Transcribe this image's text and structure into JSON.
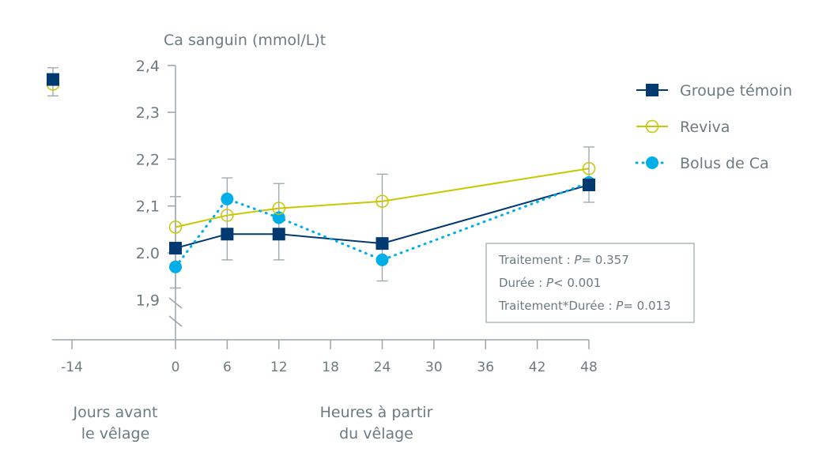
{
  "chart_data": {
    "type": "line",
    "ylabel": "Ca sanguin (mmol/L)t",
    "ylim": [
      1.85,
      2.4
    ],
    "y_ticks": [
      "2,4",
      "2,3",
      "2,2",
      "2,1",
      "2.0",
      "1,9"
    ],
    "y_tick_values": [
      2.4,
      2.3,
      2.2,
      2.1,
      2.0,
      1.9
    ],
    "y_axis_break": true,
    "x_ticks": [
      -14,
      0,
      6,
      12,
      18,
      24,
      30,
      36,
      42,
      48
    ],
    "x_label_left": "Jours avant le vêlage",
    "x_label_left_lines": [
      "Jours avant",
      "le vêlage"
    ],
    "x_label_main_lines": [
      "Heures à partir",
      "du vêlage"
    ],
    "grid": false,
    "legend_position": "right",
    "series": [
      {
        "name": "Groupe témoin",
        "color": "#003a70",
        "marker": "square",
        "line": "solid",
        "x": [
          -14,
          0,
          6,
          12,
          24,
          48
        ],
        "values": [
          2.37,
          2.01,
          2.04,
          2.04,
          2.02,
          2.145
        ]
      },
      {
        "name": "Reviva",
        "color": "#c8c800",
        "marker": "open-circle",
        "line": "solid",
        "x": [
          -14,
          0,
          6,
          12,
          24,
          48
        ],
        "values": [
          2.36,
          2.055,
          2.08,
          2.095,
          2.11,
          2.18
        ]
      },
      {
        "name": "Bolus de Ca",
        "color": "#00aee8",
        "marker": "circle",
        "line": "dotted",
        "x": [
          -14,
          0,
          6,
          12,
          24,
          48
        ],
        "values": [
          2.37,
          1.97,
          2.115,
          2.075,
          1.985,
          2.15
        ]
      }
    ],
    "error_bars": [
      {
        "x": -14,
        "low": 2.335,
        "high": 2.395
      },
      {
        "x": 0,
        "low": 1.925,
        "high": 2.12
      },
      {
        "x": 6,
        "low": 1.985,
        "high": 2.16
      },
      {
        "x": 12,
        "low": 1.985,
        "high": 2.148
      },
      {
        "x": 24,
        "low": 1.94,
        "high": 2.168
      },
      {
        "x": 48,
        "low": 2.108,
        "high": 2.226
      }
    ],
    "annotations": [
      {
        "label": "Traitement : ",
        "p": "P",
        "value": "= 0.357"
      },
      {
        "label": "Durée : ",
        "p": "P",
        "value": "< 0.001"
      },
      {
        "label": "Traitement*Durée : ",
        "p": "P",
        "value": "= 0.013"
      }
    ]
  }
}
